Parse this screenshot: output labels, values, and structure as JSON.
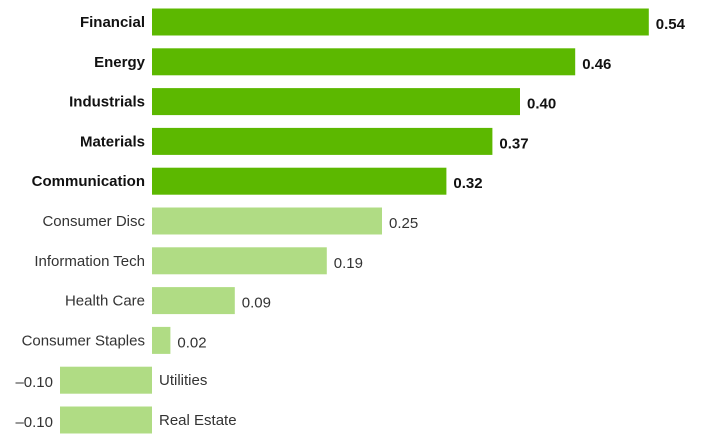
{
  "chart_data": {
    "type": "bar",
    "orientation": "horizontal",
    "title": "",
    "xlabel": "",
    "ylabel": "",
    "grid": false,
    "legend": "none",
    "xlim": [
      -0.1,
      0.54
    ],
    "categories": [
      "Financial",
      "Energy",
      "Industrials",
      "Materials",
      "Communication",
      "Consumer Disc",
      "Information Tech",
      "Health Care",
      "Consumer Staples",
      "Utilities",
      "Real Estate"
    ],
    "values": [
      0.54,
      0.46,
      0.4,
      0.37,
      0.32,
      0.25,
      0.19,
      0.09,
      0.02,
      -0.1,
      -0.1
    ],
    "value_labels": [
      "0.54",
      "0.46",
      "0.40",
      "0.37",
      "0.32",
      "0.25",
      "0.19",
      "0.09",
      "0.02",
      "–0.10",
      "–0.10"
    ],
    "highlighted": [
      true,
      true,
      true,
      true,
      true,
      false,
      false,
      false,
      false,
      false,
      false
    ],
    "colors": {
      "highlight": "#5cb800",
      "normal": "#b0dc84"
    }
  }
}
